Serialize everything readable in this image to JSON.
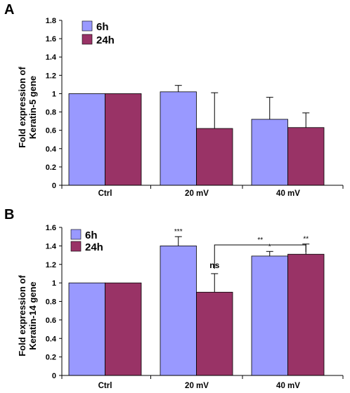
{
  "colors": {
    "series_6h": "#9999ff",
    "series_24h": "#993366",
    "axis": "#000000"
  },
  "chart_data": [
    {
      "panel_label": "A",
      "type": "bar",
      "ylabel_line1": "Fold expression of",
      "ylabel_line2": "Keratin-5 gene",
      "categories": [
        "Ctrl",
        "20 mV",
        "40 mV"
      ],
      "ylim": [
        0,
        1.8
      ],
      "yticks": [
        "0",
        "0.2",
        "0.4",
        "0.6",
        "0.8",
        "1",
        "1.2",
        "1.4",
        "1.6",
        "1.8"
      ],
      "grid": false,
      "legend": "top-left",
      "series": [
        {
          "name": "6h",
          "values": [
            1.0,
            1.02,
            0.72
          ],
          "errors": [
            0,
            0.07,
            0.24
          ]
        },
        {
          "name": "24h",
          "values": [
            1.0,
            0.62,
            0.63
          ],
          "errors": [
            0,
            0.39,
            0.16
          ]
        }
      ],
      "annotations": []
    },
    {
      "panel_label": "B",
      "type": "bar",
      "ylabel_line1": "Fold expression of",
      "ylabel_line2": "Keratin-14 gene",
      "categories": [
        "Ctrl",
        "20 mV",
        "40 mV"
      ],
      "ylim": [
        0,
        1.6
      ],
      "yticks": [
        "0",
        "0.2",
        "0.4",
        "0.6",
        "0.8",
        "1",
        "1.2",
        "1.4",
        "1.6"
      ],
      "grid": false,
      "legend": "top-left",
      "series": [
        {
          "name": "6h",
          "values": [
            1.0,
            1.4,
            1.29
          ],
          "errors": [
            0,
            0.1,
            0.05
          ]
        },
        {
          "name": "24h",
          "values": [
            1.0,
            0.9,
            1.31
          ],
          "errors": [
            0,
            0.2,
            0.11
          ]
        }
      ],
      "annotations": [
        {
          "text": "***",
          "category": 1,
          "series": 0
        },
        {
          "text": "ns",
          "category": 1,
          "series": 1
        },
        {
          "text": "*",
          "category": 2,
          "series": 0
        },
        {
          "text": "**",
          "category": 2,
          "series": 1
        }
      ],
      "bracket": {
        "from": {
          "category": 1,
          "series": 1
        },
        "to": {
          "category": 2,
          "series": 1
        },
        "text": "**"
      }
    }
  ]
}
